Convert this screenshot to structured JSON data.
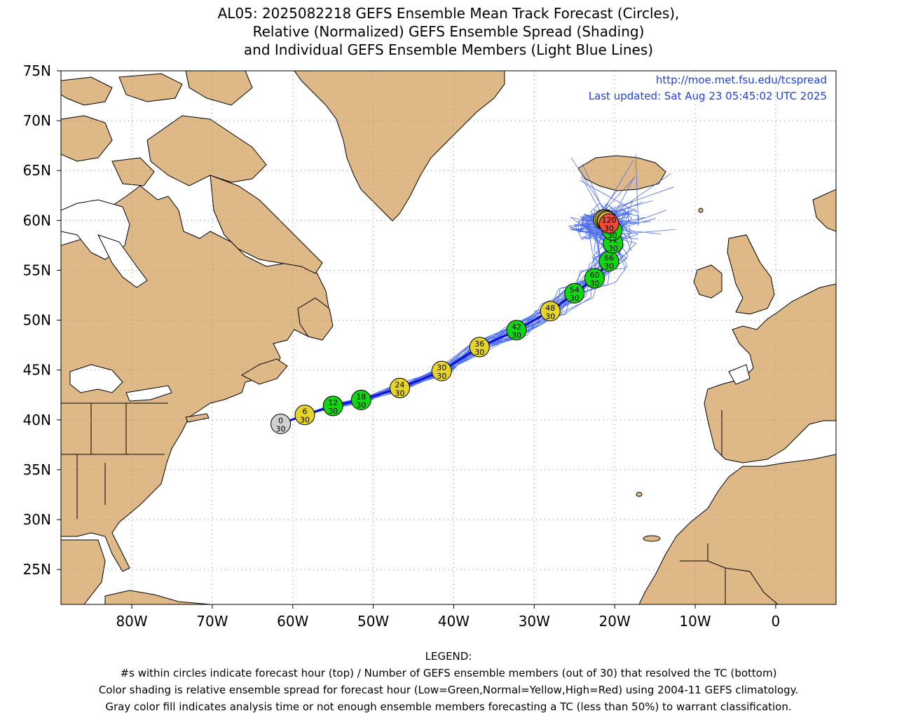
{
  "title": {
    "line1": "AL05: 2025082218 GEFS Ensemble Mean Track Forecast (Circles),",
    "line2": "Relative (Normalized) GEFS Ensemble Spread (Shading)",
    "line3": "and Individual GEFS Ensemble Members (Light Blue Lines)"
  },
  "map": {
    "url": "http://moe.met.fsu.edu/tcspread",
    "updated": "Last updated: Sat Aug 23 05:45:02 UTC 2025",
    "lat_labels": [
      "75N",
      "70N",
      "65N",
      "60N",
      "55N",
      "50N",
      "45N",
      "40N",
      "35N",
      "30N",
      "25N"
    ],
    "lon_labels": [
      "80W",
      "70W",
      "60W",
      "50W",
      "40W",
      "30W",
      "20W",
      "10W",
      "0"
    ],
    "colors": {
      "land": "#deb887",
      "ocean": "#ffffff",
      "mean_track": "#1010d0",
      "members": "#4a6cf0",
      "low_spread": "#11d611",
      "normal_spread": "#e6d42a",
      "high_spread": "#f24a3a",
      "analysis": "#d0d0d0"
    }
  },
  "chart_data": {
    "type": "scatter",
    "x_label": "",
    "y_label": "",
    "xlim": [
      -88.8,
      7.5
    ],
    "ylim": [
      21.5,
      75
    ],
    "forecast_points": [
      {
        "hour": "0",
        "members": "30",
        "lon": -61.5,
        "lat": 39.6,
        "spread": "analysis"
      },
      {
        "hour": "6",
        "members": "30",
        "lon": -58.5,
        "lat": 40.5,
        "spread": "normal"
      },
      {
        "hour": "12",
        "members": "30",
        "lon": -55.0,
        "lat": 41.4,
        "spread": "low"
      },
      {
        "hour": "18",
        "members": "30",
        "lon": -51.5,
        "lat": 42.0,
        "spread": "low"
      },
      {
        "hour": "24",
        "members": "30",
        "lon": -46.7,
        "lat": 43.2,
        "spread": "normal"
      },
      {
        "hour": "30",
        "members": "30",
        "lon": -41.5,
        "lat": 44.9,
        "spread": "normal"
      },
      {
        "hour": "36",
        "members": "30",
        "lon": -36.8,
        "lat": 47.3,
        "spread": "normal"
      },
      {
        "hour": "42",
        "members": "30",
        "lon": -32.2,
        "lat": 49.0,
        "spread": "low"
      },
      {
        "hour": "48",
        "members": "30",
        "lon": -28.0,
        "lat": 50.9,
        "spread": "normal"
      },
      {
        "hour": "54",
        "members": "30",
        "lon": -25.0,
        "lat": 52.7,
        "spread": "low"
      },
      {
        "hour": "60",
        "members": "30",
        "lon": -22.5,
        "lat": 54.2,
        "spread": "low"
      },
      {
        "hour": "66",
        "members": "30",
        "lon": -20.7,
        "lat": 55.9,
        "spread": "low"
      },
      {
        "hour": "72",
        "members": "30",
        "lon": -20.2,
        "lat": 57.7,
        "spread": "low"
      },
      {
        "hour": "90",
        "members": "30",
        "lon": -20.3,
        "lat": 59.0,
        "spread": "low"
      },
      {
        "hour": "96",
        "members": "30",
        "lon": -21.4,
        "lat": 60.1,
        "spread": "normal"
      },
      {
        "hour": "102",
        "members": "30",
        "lon": -21.2,
        "lat": 60.1,
        "spread": "normal"
      },
      {
        "hour": "108",
        "members": "30",
        "lon": -21.0,
        "lat": 60.0,
        "spread": "normal"
      },
      {
        "hour": "114",
        "members": "30",
        "lon": -20.9,
        "lat": 59.9,
        "spread": "normal"
      },
      {
        "hour": "120",
        "members": "30",
        "lon": -20.7,
        "lat": 59.7,
        "spread": "high"
      }
    ],
    "visible_labels": [
      "0",
      "6",
      "12",
      "18",
      "24",
      "30",
      "36",
      "42",
      "48",
      "54",
      "60",
      "66",
      "72",
      "90",
      "120"
    ]
  },
  "legend": {
    "heading": "LEGEND:",
    "line1": "#s within circles indicate forecast hour (top) / Number of GEFS ensemble members (out of 30) that resolved the TC (bottom)",
    "line2": "Color shading is relative ensemble spread for forecast hour (Low=Green,Normal=Yellow,High=Red) using 2004-11 GEFS climatology.",
    "line3": "Gray color fill indicates analysis time or not enough ensemble members forecasting a TC (less than 50%) to warrant classification."
  }
}
